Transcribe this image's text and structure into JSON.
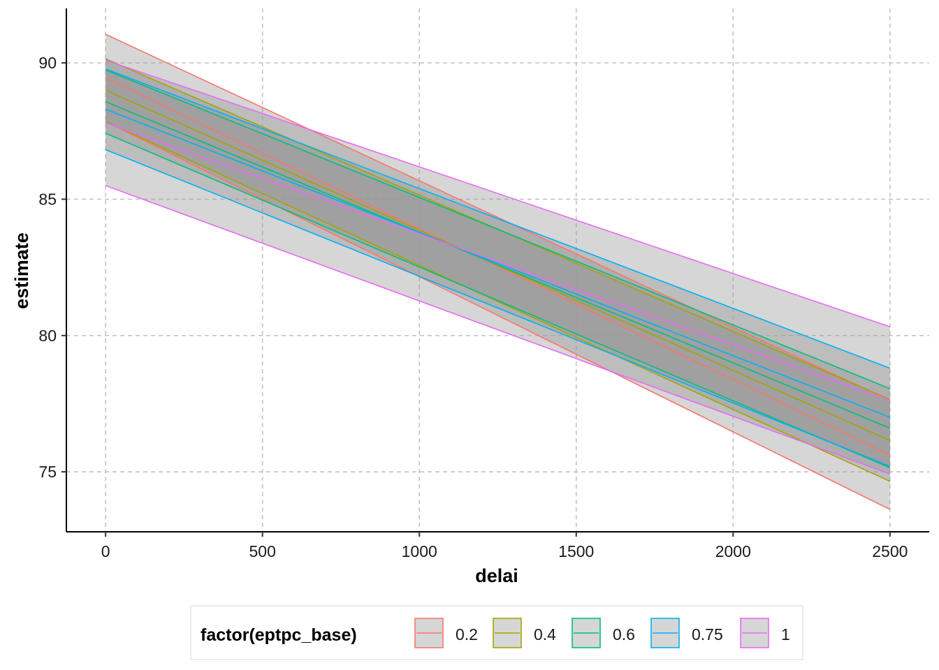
{
  "chart_data": {
    "type": "line",
    "title": "",
    "xlabel": "delai",
    "ylabel": "estimate",
    "xlim": [
      -125,
      2625
    ],
    "ylim": [
      72.8,
      92
    ],
    "x_ticks": [
      0,
      500,
      1000,
      1500,
      2000,
      2500
    ],
    "y_ticks": [
      75,
      80,
      85,
      90
    ],
    "grid": true,
    "grid_style": "dashed",
    "legend_title": "factor(eptpc_base)",
    "legend_position": "bottom",
    "ribbon_color": "#999999",
    "series": [
      {
        "name": "0.2",
        "color": "#F8766D",
        "x": [
          0,
          2500
        ],
        "estimate": [
          89.45,
          75.62
        ],
        "lower": [
          87.85,
          73.62
        ],
        "upper": [
          91.05,
          77.62
        ]
      },
      {
        "name": "0.4",
        "color": "#A3A500",
        "x": [
          0,
          2500
        ],
        "estimate": [
          89.0,
          76.15
        ],
        "lower": [
          87.85,
          74.65
        ],
        "upper": [
          90.15,
          77.65
        ]
      },
      {
        "name": "0.6",
        "color": "#00BF7D",
        "x": [
          0,
          2500
        ],
        "estimate": [
          88.58,
          76.6
        ],
        "lower": [
          87.42,
          75.15
        ],
        "upper": [
          89.74,
          78.05
        ]
      },
      {
        "name": "0.75",
        "color": "#00B0F6",
        "x": [
          0,
          2500
        ],
        "estimate": [
          88.3,
          77.0
        ],
        "lower": [
          86.82,
          75.2
        ],
        "upper": [
          89.78,
          78.8
        ]
      },
      {
        "name": "1",
        "color": "#E76BF3",
        "x": [
          0,
          2500
        ],
        "estimate": [
          87.8,
          77.62
        ],
        "lower": [
          85.5,
          74.92
        ],
        "upper": [
          90.1,
          80.32
        ]
      }
    ]
  }
}
